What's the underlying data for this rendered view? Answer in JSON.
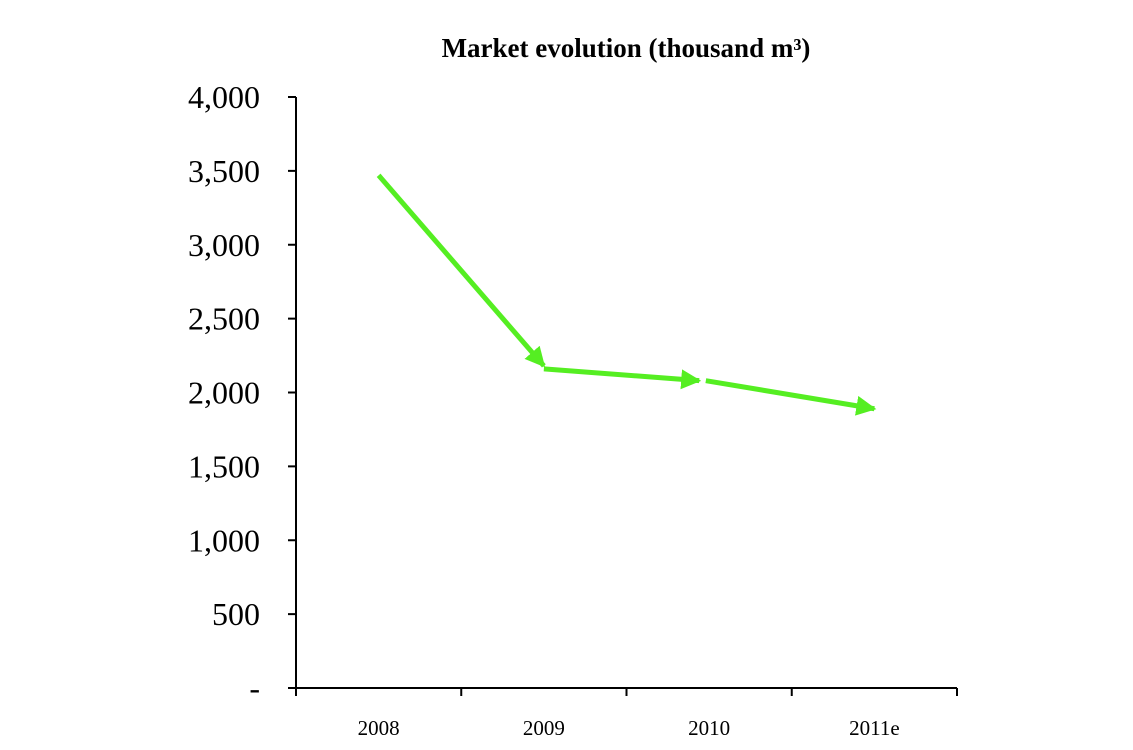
{
  "chart_data": {
    "type": "line",
    "title": "Market evolution (thousand m³)",
    "xlabel": "",
    "ylabel": "",
    "categories": [
      "2008",
      "2009",
      "2010",
      "2011e"
    ],
    "series": [
      {
        "segments": [
          {
            "from": 3470,
            "to": 2180
          },
          {
            "from": 2160,
            "to": 2080
          },
          {
            "from": 2080,
            "to": 1890
          }
        ],
        "color": "#55ee22"
      }
    ],
    "ylim": [
      0,
      4000
    ],
    "y_ticks": [
      0,
      500,
      1000,
      1500,
      2000,
      2500,
      3000,
      3500,
      4000
    ],
    "y_tick_labels": [
      "-",
      "500",
      "1,000",
      "1,500",
      "2,000",
      "2,500",
      "3,000",
      "3,500",
      "4,000"
    ],
    "grid": false,
    "legend": "none",
    "line_style": "arrows"
  }
}
